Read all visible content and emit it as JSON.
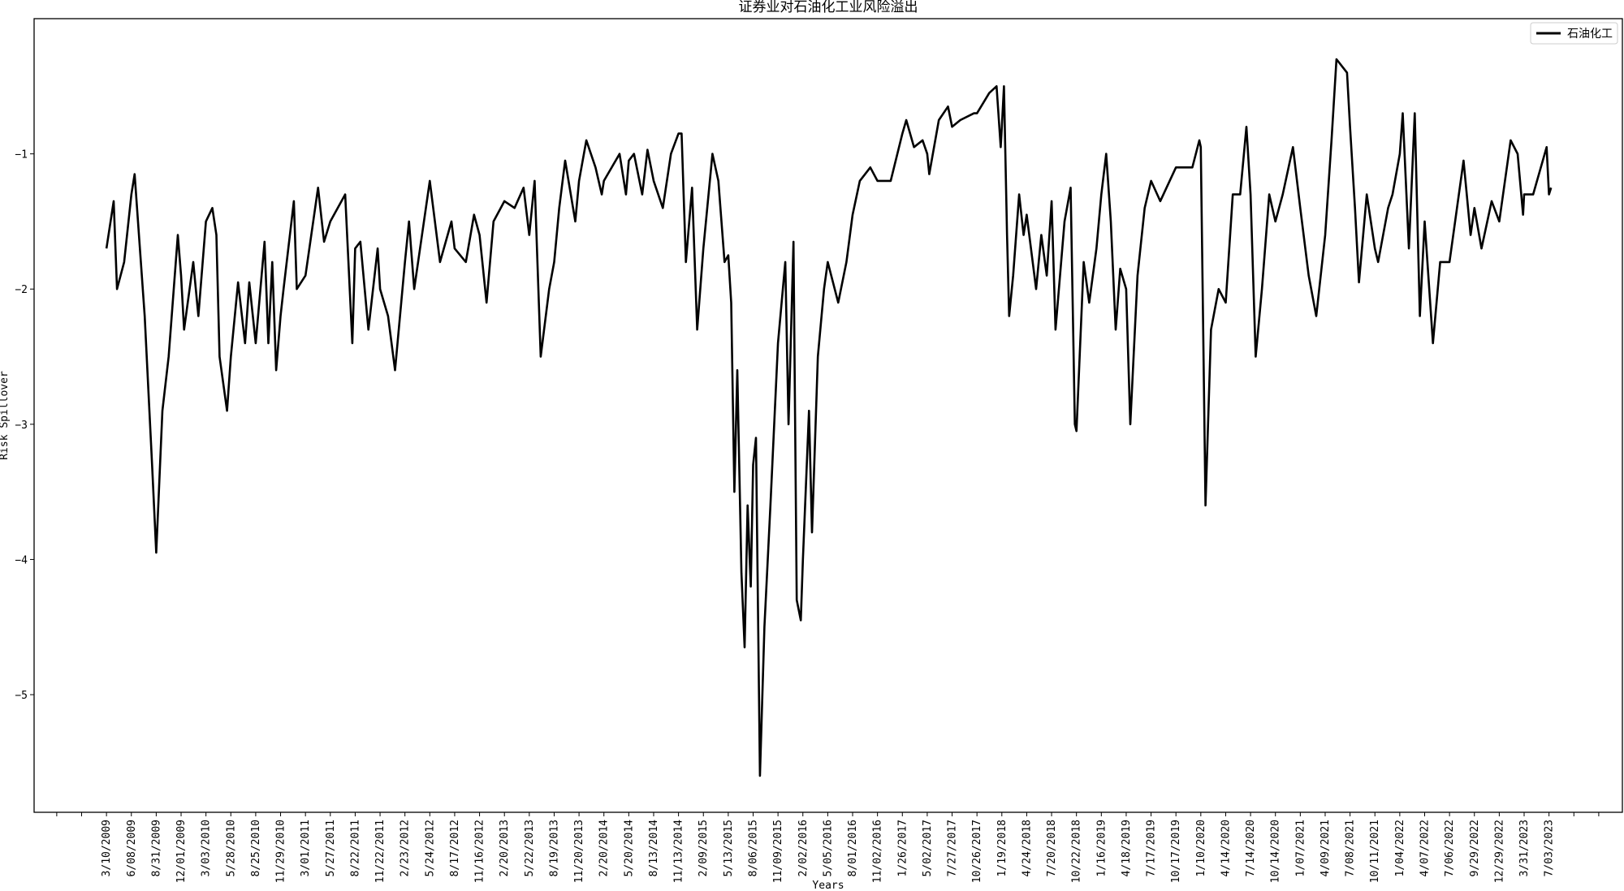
{
  "chart_data": {
    "type": "line",
    "title": "证券业对石油化工业风险溢出",
    "xlabel": "Years",
    "ylabel": "Risk Spillover",
    "ylim": [
      -5.87,
      0.0
    ],
    "yticks": [
      -5,
      -4,
      -3,
      -2,
      -1
    ],
    "grid": false,
    "legend_placement": "top-right",
    "line_color": "#000000",
    "xtick_labels": [
      "3/10/2009",
      "6/08/2009",
      "8/31/2009",
      "12/01/2009",
      "3/03/2010",
      "5/28/2010",
      "8/25/2010",
      "11/29/2010",
      "3/01/2011",
      "5/27/2011",
      "8/22/2011",
      "11/22/2011",
      "2/23/2012",
      "5/24/2012",
      "8/17/2012",
      "11/16/2012",
      "2/20/2013",
      "5/22/2013",
      "8/19/2013",
      "11/20/2013",
      "2/20/2014",
      "5/20/2014",
      "8/13/2014",
      "11/13/2014",
      "2/09/2015",
      "5/13/2015",
      "8/06/2015",
      "11/09/2015",
      "2/02/2016",
      "5/05/2016",
      "8/01/2016",
      "11/02/2016",
      "1/26/2017",
      "5/02/2017",
      "7/27/2017",
      "10/26/2017",
      "1/19/2018",
      "4/24/2018",
      "7/20/2018",
      "10/22/2018",
      "1/16/2019",
      "4/18/2019",
      "7/17/2019",
      "10/17/2019",
      "1/10/2020",
      "4/14/2020",
      "7/14/2020",
      "10/14/2020",
      "1/07/2021",
      "4/09/2021",
      "7/08/2021",
      "10/11/2021",
      "1/04/2022",
      "4/07/2022",
      "7/06/2022",
      "9/29/2022",
      "12/29/2022",
      "3/31/2023",
      "7/03/2023"
    ],
    "series": [
      {
        "name": "石油化工",
        "points": [
          [
            "3/10/2009",
            -1.7
          ],
          [
            "4/05/2009",
            -1.35
          ],
          [
            "4/17/2009",
            -2.0
          ],
          [
            "5/13/2009",
            -1.8
          ],
          [
            "6/08/2009",
            -1.3
          ],
          [
            "6/19/2009",
            -1.15
          ],
          [
            "7/23/2009",
            -2.2
          ],
          [
            "8/17/2009",
            -3.3
          ],
          [
            "8/31/2009",
            -3.95
          ],
          [
            "9/23/2009",
            -2.9
          ],
          [
            "10/16/2009",
            -2.5
          ],
          [
            "11/19/2009",
            -1.6
          ],
          [
            "12/01/2009",
            -1.9
          ],
          [
            "12/12/2009",
            -2.3
          ],
          [
            "1/15/2010",
            -1.8
          ],
          [
            "2/03/2010",
            -2.2
          ],
          [
            "3/03/2010",
            -1.5
          ],
          [
            "3/25/2010",
            -1.4
          ],
          [
            "4/08/2010",
            -1.6
          ],
          [
            "4/19/2010",
            -2.5
          ],
          [
            "5/15/2010",
            -2.9
          ],
          [
            "5/28/2010",
            -2.5
          ],
          [
            "6/23/2010",
            -1.95
          ],
          [
            "7/18/2010",
            -2.4
          ],
          [
            "8/02/2010",
            -1.95
          ],
          [
            "8/25/2010",
            -2.4
          ],
          [
            "9/28/2010",
            -1.65
          ],
          [
            "10/13/2010",
            -2.4
          ],
          [
            "10/28/2010",
            -1.8
          ],
          [
            "11/12/2010",
            -2.6
          ],
          [
            "11/29/2010",
            -2.2
          ],
          [
            "12/10/2010",
            -2.0
          ],
          [
            "1/17/2011",
            -1.35
          ],
          [
            "1/28/2011",
            -2.0
          ],
          [
            "3/01/2011",
            -1.9
          ],
          [
            "4/14/2011",
            -1.25
          ],
          [
            "5/05/2011",
            -1.65
          ],
          [
            "5/27/2011",
            -1.5
          ],
          [
            "7/18/2011",
            -1.3
          ],
          [
            "8/12/2011",
            -2.4
          ],
          [
            "8/22/2011",
            -1.7
          ],
          [
            "9/10/2011",
            -1.65
          ],
          [
            "10/10/2011",
            -2.3
          ],
          [
            "11/13/2011",
            -1.7
          ],
          [
            "11/22/2011",
            -2.0
          ],
          [
            "12/22/2011",
            -2.2
          ],
          [
            "1/17/2012",
            -2.6
          ],
          [
            "2/23/2012",
            -1.8
          ],
          [
            "3/09/2012",
            -1.5
          ],
          [
            "3/28/2012",
            -2.0
          ],
          [
            "5/24/2012",
            -1.2
          ],
          [
            "6/28/2012",
            -1.8
          ],
          [
            "8/06/2012",
            -1.5
          ],
          [
            "8/17/2012",
            -1.7
          ],
          [
            "9/27/2012",
            -1.8
          ],
          [
            "10/27/2012",
            -1.45
          ],
          [
            "11/16/2012",
            -1.6
          ],
          [
            "12/13/2012",
            -2.1
          ],
          [
            "1/09/2013",
            -1.5
          ],
          [
            "2/20/2013",
            -1.35
          ],
          [
            "3/29/2013",
            -1.4
          ],
          [
            "5/01/2013",
            -1.25
          ],
          [
            "5/22/2013",
            -1.6
          ],
          [
            "6/10/2013",
            -1.2
          ],
          [
            "7/02/2013",
            -2.5
          ],
          [
            "8/01/2013",
            -2.0
          ],
          [
            "8/19/2013",
            -1.8
          ],
          [
            "9/07/2013",
            -1.4
          ],
          [
            "9/29/2013",
            -1.05
          ],
          [
            "11/06/2013",
            -1.5
          ],
          [
            "11/20/2013",
            -1.2
          ],
          [
            "12/17/2013",
            -0.9
          ],
          [
            "1/20/2014",
            -1.1
          ],
          [
            "2/12/2014",
            -1.3
          ],
          [
            "2/20/2014",
            -1.2
          ],
          [
            "4/17/2014",
            -1.0
          ],
          [
            "5/10/2014",
            -1.3
          ],
          [
            "5/20/2014",
            -1.05
          ],
          [
            "6/07/2014",
            -1.0
          ],
          [
            "7/05/2014",
            -1.3
          ],
          [
            "7/23/2014",
            -0.97
          ],
          [
            "8/13/2014",
            -1.2
          ],
          [
            "9/16/2014",
            -1.4
          ],
          [
            "10/16/2014",
            -1.0
          ],
          [
            "11/13/2014",
            -0.85
          ],
          [
            "11/24/2014",
            -0.85
          ],
          [
            "12/09/2014",
            -1.8
          ],
          [
            "12/31/2014",
            -1.25
          ],
          [
            "1/18/2015",
            -2.3
          ],
          [
            "2/09/2015",
            -1.7
          ],
          [
            "3/15/2015",
            -1.0
          ],
          [
            "4/06/2015",
            -1.2
          ],
          [
            "4/29/2015",
            -1.8
          ],
          [
            "5/13/2015",
            -1.75
          ],
          [
            "5/23/2015",
            -2.1
          ],
          [
            "6/03/2015",
            -3.5
          ],
          [
            "6/13/2015",
            -2.6
          ],
          [
            "6/27/2015",
            -4.1
          ],
          [
            "7/08/2015",
            -4.65
          ],
          [
            "7/18/2015",
            -3.6
          ],
          [
            "7/29/2015",
            -4.2
          ],
          [
            "8/06/2015",
            -3.3
          ],
          [
            "8/17/2015",
            -3.1
          ],
          [
            "9/01/2015",
            -5.6
          ],
          [
            "9/18/2015",
            -4.5
          ],
          [
            "10/11/2015",
            -3.6
          ],
          [
            "11/09/2015",
            -2.4
          ],
          [
            "12/04/2015",
            -1.8
          ],
          [
            "12/15/2015",
            -3.0
          ],
          [
            "1/01/2016",
            -1.65
          ],
          [
            "1/12/2016",
            -4.3
          ],
          [
            "1/26/2016",
            -4.45
          ],
          [
            "2/02/2016",
            -4.0
          ],
          [
            "2/25/2016",
            -2.9
          ],
          [
            "3/07/2016",
            -3.8
          ],
          [
            "3/29/2016",
            -2.5
          ],
          [
            "4/21/2016",
            -2.0
          ],
          [
            "5/05/2016",
            -1.8
          ],
          [
            "6/11/2016",
            -2.1
          ],
          [
            "7/10/2016",
            -1.8
          ],
          [
            "8/01/2016",
            -1.45
          ],
          [
            "8/28/2016",
            -1.2
          ],
          [
            "10/06/2016",
            -1.1
          ],
          [
            "11/02/2016",
            -1.2
          ],
          [
            "12/17/2016",
            -1.2
          ],
          [
            "1/26/2017",
            -0.85
          ],
          [
            "2/10/2017",
            -0.75
          ],
          [
            "3/12/2017",
            -0.95
          ],
          [
            "4/14/2017",
            -0.9
          ],
          [
            "5/02/2017",
            -1.0
          ],
          [
            "5/09/2017",
            -1.15
          ],
          [
            "6/11/2017",
            -0.75
          ],
          [
            "7/13/2017",
            -0.65
          ],
          [
            "7/27/2017",
            -0.8
          ],
          [
            "8/26/2017",
            -0.75
          ],
          [
            "10/15/2017",
            -0.7
          ],
          [
            "10/26/2017",
            -0.7
          ],
          [
            "12/07/2017",
            -0.55
          ],
          [
            "1/01/2018",
            -0.5
          ],
          [
            "1/15/2018",
            -0.95
          ],
          [
            "1/19/2018",
            -0.8
          ],
          [
            "1/27/2018",
            -0.5
          ],
          [
            "2/08/2018",
            -1.6
          ],
          [
            "2/16/2018",
            -2.2
          ],
          [
            "3/03/2018",
            -1.9
          ],
          [
            "3/26/2018",
            -1.3
          ],
          [
            "4/12/2018",
            -1.6
          ],
          [
            "4/24/2018",
            -1.45
          ],
          [
            "5/27/2018",
            -2.0
          ],
          [
            "6/14/2018",
            -1.6
          ],
          [
            "7/03/2018",
            -1.9
          ],
          [
            "7/20/2018",
            -1.35
          ],
          [
            "8/04/2018",
            -2.3
          ],
          [
            "9/07/2018",
            -1.5
          ],
          [
            "9/30/2018",
            -1.25
          ],
          [
            "10/16/2018",
            -3.0
          ],
          [
            "10/22/2018",
            -3.05
          ],
          [
            "11/16/2018",
            -1.8
          ],
          [
            "12/05/2018",
            -2.1
          ],
          [
            "12/30/2018",
            -1.7
          ],
          [
            "1/16/2019",
            -1.3
          ],
          [
            "2/03/2019",
            -1.0
          ],
          [
            "2/20/2019",
            -1.5
          ],
          [
            "3/10/2019",
            -2.3
          ],
          [
            "3/27/2019",
            -1.85
          ],
          [
            "4/18/2019",
            -2.0
          ],
          [
            "5/03/2019",
            -3.0
          ],
          [
            "5/29/2019",
            -1.9
          ],
          [
            "6/24/2019",
            -1.4
          ],
          [
            "7/17/2019",
            -1.2
          ],
          [
            "8/20/2019",
            -1.35
          ],
          [
            "10/17/2019",
            -1.1
          ],
          [
            "12/12/2019",
            -1.1
          ],
          [
            "1/05/2020",
            -0.9
          ],
          [
            "1/10/2020",
            -0.95
          ],
          [
            "1/28/2020",
            -3.6
          ],
          [
            "2/18/2020",
            -2.3
          ],
          [
            "3/18/2020",
            -2.0
          ],
          [
            "4/14/2020",
            -2.1
          ],
          [
            "5/10/2020",
            -1.3
          ],
          [
            "6/06/2020",
            -1.3
          ],
          [
            "6/29/2020",
            -0.8
          ],
          [
            "7/14/2020",
            -1.3
          ],
          [
            "8/02/2020",
            -2.5
          ],
          [
            "8/25/2020",
            -2.0
          ],
          [
            "9/21/2020",
            -1.3
          ],
          [
            "10/14/2020",
            -1.5
          ],
          [
            "11/08/2020",
            -1.3
          ],
          [
            "12/13/2020",
            -0.95
          ],
          [
            "1/07/2021",
            -1.4
          ],
          [
            "2/07/2021",
            -1.9
          ],
          [
            "3/07/2021",
            -2.2
          ],
          [
            "4/09/2021",
            -1.6
          ],
          [
            "5/02/2021",
            -0.9
          ],
          [
            "5/20/2021",
            -0.3
          ],
          [
            "6/27/2021",
            -0.4
          ],
          [
            "7/08/2021",
            -0.8
          ],
          [
            "7/27/2021",
            -1.4
          ],
          [
            "8/11/2021",
            -1.95
          ],
          [
            "9/10/2021",
            -1.3
          ],
          [
            "10/11/2021",
            -1.7
          ],
          [
            "10/22/2021",
            -1.8
          ],
          [
            "11/25/2021",
            -1.4
          ],
          [
            "12/10/2021",
            -1.3
          ],
          [
            "1/04/2022",
            -1.0
          ],
          [
            "1/15/2022",
            -0.7
          ],
          [
            "2/07/2022",
            -1.7
          ],
          [
            "3/01/2022",
            -0.7
          ],
          [
            "3/20/2022",
            -2.2
          ],
          [
            "4/07/2022",
            -1.5
          ],
          [
            "5/07/2022",
            -2.4
          ],
          [
            "6/02/2022",
            -1.8
          ],
          [
            "7/06/2022",
            -1.8
          ],
          [
            "8/23/2022",
            -1.05
          ],
          [
            "9/16/2022",
            -1.6
          ],
          [
            "9/29/2022",
            -1.4
          ],
          [
            "10/25/2022",
            -1.7
          ],
          [
            "12/01/2022",
            -1.35
          ],
          [
            "12/29/2022",
            -1.5
          ],
          [
            "2/09/2023",
            -0.9
          ],
          [
            "3/07/2023",
            -1.0
          ],
          [
            "3/27/2023",
            -1.45
          ],
          [
            "3/31/2023",
            -1.3
          ],
          [
            "5/04/2023",
            -1.3
          ],
          [
            "6/24/2023",
            -0.95
          ],
          [
            "7/03/2023",
            -1.3
          ],
          [
            "7/11/2023",
            -1.25
          ]
        ]
      }
    ]
  }
}
